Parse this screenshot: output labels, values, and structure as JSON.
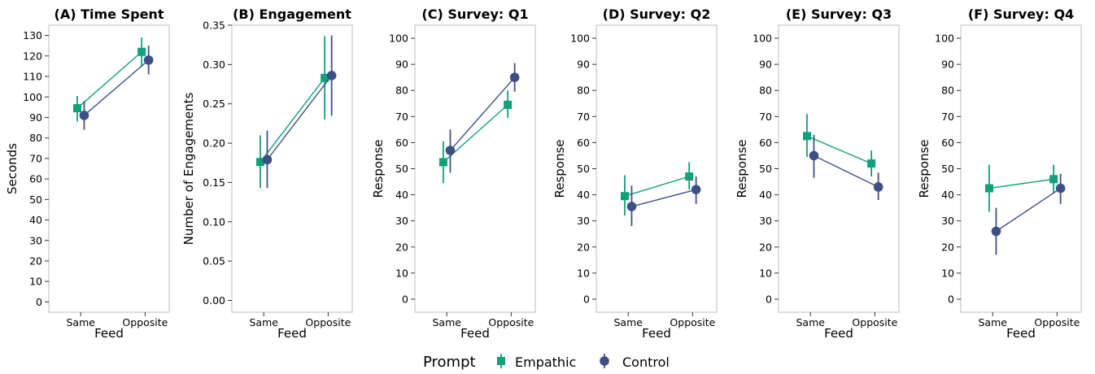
{
  "legend": {
    "title": "Prompt",
    "entries": [
      {
        "name": "Empathic",
        "color": "#10a07a",
        "marker": "square"
      },
      {
        "name": "Control",
        "color": "#3e4f86",
        "marker": "circle"
      }
    ]
  },
  "chart_data": [
    {
      "type": "line",
      "title": "(A) Time Spent",
      "xlabel": "Feed",
      "ylabel": "Seconds",
      "categories": [
        "Same",
        "Opposite"
      ],
      "ylim": [
        -5,
        135
      ],
      "yticks": [
        0,
        10,
        20,
        30,
        40,
        50,
        60,
        70,
        80,
        90,
        100,
        110,
        120,
        130
      ],
      "ytick_labels": [
        "0",
        "10",
        "20",
        "30",
        "40",
        "50",
        "60",
        "70",
        "80",
        "90",
        "100",
        "110",
        "120",
        "130"
      ],
      "series": [
        {
          "name": "Empathic",
          "values": [
            94.5,
            122
          ],
          "err_low": [
            88,
            115
          ],
          "err_high": [
            100.5,
            129
          ]
        },
        {
          "name": "Control",
          "values": [
            91,
            118
          ],
          "err_low": [
            84,
            111
          ],
          "err_high": [
            98,
            125
          ]
        }
      ]
    },
    {
      "type": "line",
      "title": "(B) Engagement",
      "xlabel": "Feed",
      "ylabel": "Number of Engagements",
      "categories": [
        "Same",
        "Opposite"
      ],
      "ylim": [
        -0.015,
        0.35
      ],
      "yticks": [
        0,
        0.05,
        0.1,
        0.15,
        0.2,
        0.25,
        0.3,
        0.35
      ],
      "ytick_labels": [
        "0.00",
        "0.05",
        "0.10",
        "0.15",
        "0.20",
        "0.25",
        "0.30",
        "0.35"
      ],
      "series": [
        {
          "name": "Empathic",
          "values": [
            0.176,
            0.283
          ],
          "err_low": [
            0.143,
            0.23
          ],
          "err_high": [
            0.21,
            0.336
          ]
        },
        {
          "name": "Control",
          "values": [
            0.179,
            0.286
          ],
          "err_low": [
            0.143,
            0.235
          ],
          "err_high": [
            0.216,
            0.337
          ]
        }
      ]
    },
    {
      "type": "line",
      "title": "(C) Survey: Q1",
      "xlabel": "Feed",
      "ylabel": "Response",
      "categories": [
        "Same",
        "Opposite"
      ],
      "ylim": [
        -5,
        105
      ],
      "yticks": [
        0,
        10,
        20,
        30,
        40,
        50,
        60,
        70,
        80,
        90,
        100
      ],
      "ytick_labels": [
        "0",
        "10",
        "20",
        "30",
        "40",
        "50",
        "60",
        "70",
        "80",
        "90",
        "100"
      ],
      "series": [
        {
          "name": "Empathic",
          "values": [
            52.5,
            74.5
          ],
          "err_low": [
            44.5,
            69.5
          ],
          "err_high": [
            60.5,
            80
          ]
        },
        {
          "name": "Control",
          "values": [
            57,
            85
          ],
          "err_low": [
            48.5,
            79.5
          ],
          "err_high": [
            65,
            90.5
          ]
        }
      ]
    },
    {
      "type": "line",
      "title": "(D) Survey: Q2",
      "xlabel": "Feed",
      "ylabel": "Response",
      "categories": [
        "Same",
        "Opposite"
      ],
      "ylim": [
        -5,
        105
      ],
      "yticks": [
        0,
        10,
        20,
        30,
        40,
        50,
        60,
        70,
        80,
        90,
        100
      ],
      "ytick_labels": [
        "0",
        "10",
        "20",
        "30",
        "40",
        "50",
        "60",
        "70",
        "80",
        "90",
        "100"
      ],
      "series": [
        {
          "name": "Empathic",
          "values": [
            39.5,
            47
          ],
          "err_low": [
            32,
            42
          ],
          "err_high": [
            47.5,
            52.5
          ]
        },
        {
          "name": "Control",
          "values": [
            35.5,
            42
          ],
          "err_low": [
            28,
            36.5
          ],
          "err_high": [
            43.5,
            47
          ]
        }
      ]
    },
    {
      "type": "line",
      "title": "(E) Survey: Q3",
      "xlabel": "Feed",
      "ylabel": "Response",
      "categories": [
        "Same",
        "Opposite"
      ],
      "ylim": [
        -5,
        105
      ],
      "yticks": [
        0,
        10,
        20,
        30,
        40,
        50,
        60,
        70,
        80,
        90,
        100
      ],
      "ytick_labels": [
        "0",
        "10",
        "20",
        "30",
        "40",
        "50",
        "60",
        "70",
        "80",
        "90",
        "100"
      ],
      "series": [
        {
          "name": "Empathic",
          "values": [
            62.5,
            52
          ],
          "err_low": [
            54.5,
            47
          ],
          "err_high": [
            71,
            57
          ]
        },
        {
          "name": "Control",
          "values": [
            55,
            43
          ],
          "err_low": [
            46.5,
            38
          ],
          "err_high": [
            63,
            48.5
          ]
        }
      ]
    },
    {
      "type": "line",
      "title": "(F) Survey: Q4",
      "xlabel": "Feed",
      "ylabel": "Response",
      "categories": [
        "Same",
        "Opposite"
      ],
      "ylim": [
        -5,
        105
      ],
      "yticks": [
        0,
        10,
        20,
        30,
        40,
        50,
        60,
        70,
        80,
        90,
        100
      ],
      "ytick_labels": [
        "0",
        "10",
        "20",
        "30",
        "40",
        "50",
        "60",
        "70",
        "80",
        "90",
        "100"
      ],
      "series": [
        {
          "name": "Empathic",
          "values": [
            42.5,
            46
          ],
          "err_low": [
            33.5,
            40.5
          ],
          "err_high": [
            51.5,
            51.5
          ]
        },
        {
          "name": "Control",
          "values": [
            26,
            42.5
          ],
          "err_low": [
            17,
            36.5
          ],
          "err_high": [
            35,
            48
          ]
        }
      ]
    }
  ]
}
